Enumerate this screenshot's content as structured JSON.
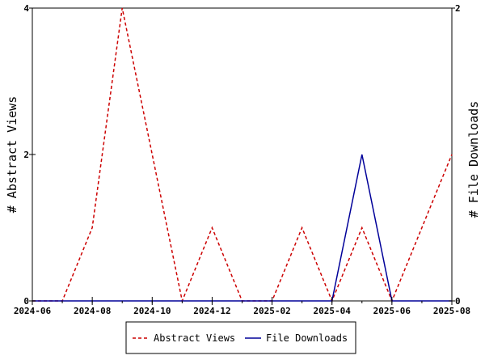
{
  "chart_data": {
    "type": "line",
    "x": [
      "2024-06",
      "2024-07",
      "2024-08",
      "2024-09",
      "2024-10",
      "2024-11",
      "2024-12",
      "2025-01",
      "2025-02",
      "2025-03",
      "2025-04",
      "2025-05",
      "2025-06",
      "2025-07",
      "2025-08"
    ],
    "x_ticks": [
      "2024-06",
      "2024-08",
      "2024-10",
      "2024-12",
      "2025-02",
      "2025-04",
      "2025-06",
      "2025-08"
    ],
    "series": [
      {
        "name": "Abstract Views",
        "axis": "left",
        "color": "#cc0000",
        "dash": "dashed",
        "values": [
          0,
          0,
          1,
          4,
          2,
          0,
          1,
          0,
          0,
          1,
          0,
          1,
          0,
          1,
          2
        ]
      },
      {
        "name": "File Downloads",
        "axis": "right",
        "color": "#000099",
        "dash": "solid",
        "values": [
          0,
          0,
          0,
          0,
          0,
          0,
          0,
          0,
          0,
          0,
          0,
          1,
          0,
          0,
          0
        ]
      }
    ],
    "ylabel_left": "# Abstract Views",
    "ylabel_right": "# File Downloads",
    "ylim_left": [
      0,
      4
    ],
    "ylim_right": [
      0,
      2
    ],
    "yticks_left": [
      0,
      2,
      4
    ],
    "yticks_right": [
      0,
      2
    ],
    "grid": false,
    "legend_position": "bottom"
  }
}
